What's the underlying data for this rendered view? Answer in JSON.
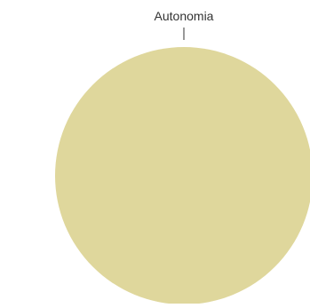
{
  "chart_data": {
    "type": "pie",
    "title": "",
    "slices": [
      {
        "label": "Autonomia",
        "value": 100,
        "color": "#dfd79c"
      }
    ],
    "legend": "none",
    "label_style": "outside-with-leader-line"
  }
}
